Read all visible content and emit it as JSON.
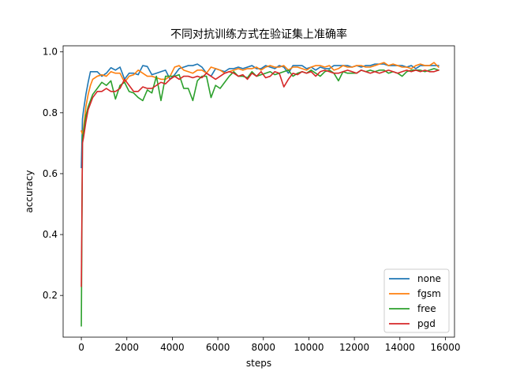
{
  "chart_data": {
    "type": "line",
    "title": "不同对抗训练方式在验证集上准确率",
    "xlabel": "steps",
    "ylabel": "accuracy",
    "xlim": [
      -800,
      16400
    ],
    "ylim": [
      0.063,
      1.02
    ],
    "xticks": [
      0,
      2000,
      4000,
      6000,
      8000,
      10000,
      12000,
      14000,
      16000
    ],
    "yticks": [
      0.2,
      0.4,
      0.6,
      0.8,
      1.0
    ],
    "xtick_labels": [
      "0",
      "2000",
      "4000",
      "6000",
      "8000",
      "10000",
      "12000",
      "14000",
      "16000"
    ],
    "ytick_labels": [
      "0.2",
      "0.4",
      "0.6",
      "0.8",
      "1.0"
    ],
    "grid": false,
    "legend_position": "lower-right",
    "series": [
      {
        "name": "none",
        "color": "#1f77b4",
        "x": [
          0,
          50,
          100,
          200,
          300,
          400,
          500,
          700,
          900,
          1100,
          1300,
          1500,
          1700,
          1900,
          2100,
          2300,
          2500,
          2700,
          2900,
          3100,
          3300,
          3500,
          3700,
          3900,
          4100,
          4300,
          4500,
          4700,
          4900,
          5100,
          5300,
          5500,
          5700,
          5900,
          6100,
          6300,
          6500,
          6700,
          6900,
          7100,
          7300,
          7500,
          7700,
          7900,
          8100,
          8300,
          8500,
          8700,
          8900,
          9100,
          9300,
          9500,
          9700,
          9900,
          10100,
          10300,
          10500,
          10700,
          10900,
          11100,
          11300,
          11500,
          11700,
          11900,
          12100,
          12300,
          12500,
          12700,
          12900,
          13100,
          13300,
          13500,
          13700,
          13900,
          14100,
          14300,
          14500,
          14700,
          14900,
          15100,
          15300,
          15500,
          15700
        ],
        "y": [
          0.62,
          0.78,
          0.81,
          0.86,
          0.9,
          0.935,
          0.935,
          0.935,
          0.92,
          0.93,
          0.948,
          0.94,
          0.95,
          0.91,
          0.93,
          0.93,
          0.925,
          0.955,
          0.952,
          0.925,
          0.93,
          0.935,
          0.94,
          0.91,
          0.925,
          0.945,
          0.95,
          0.955,
          0.955,
          0.96,
          0.95,
          0.93,
          0.92,
          0.945,
          0.94,
          0.935,
          0.945,
          0.945,
          0.95,
          0.945,
          0.95,
          0.955,
          0.945,
          0.945,
          0.955,
          0.95,
          0.945,
          0.955,
          0.95,
          0.93,
          0.955,
          0.955,
          0.955,
          0.945,
          0.95,
          0.94,
          0.95,
          0.945,
          0.945,
          0.955,
          0.955,
          0.955,
          0.955,
          0.95,
          0.955,
          0.95,
          0.955,
          0.955,
          0.96,
          0.96,
          0.96,
          0.955,
          0.955,
          0.955,
          0.955,
          0.95,
          0.955,
          0.945,
          0.955,
          0.955,
          0.955,
          0.955,
          0.955
        ]
      },
      {
        "name": "fgsm",
        "color": "#ff7f0e",
        "x": [
          0,
          50,
          100,
          200,
          300,
          400,
          500,
          700,
          900,
          1100,
          1300,
          1500,
          1700,
          1900,
          2100,
          2300,
          2500,
          2700,
          2900,
          3100,
          3300,
          3500,
          3700,
          3900,
          4100,
          4300,
          4500,
          4700,
          4900,
          5100,
          5300,
          5500,
          5700,
          5900,
          6100,
          6300,
          6500,
          6700,
          6900,
          7100,
          7300,
          7500,
          7700,
          7900,
          8100,
          8300,
          8500,
          8700,
          8900,
          9100,
          9300,
          9500,
          9700,
          9900,
          10100,
          10300,
          10500,
          10700,
          10900,
          11100,
          11300,
          11500,
          11700,
          11900,
          12100,
          12300,
          12500,
          12700,
          12900,
          13100,
          13300,
          13500,
          13700,
          13900,
          14100,
          14300,
          14500,
          14700,
          14900,
          15100,
          15300,
          15500,
          15700
        ],
        "y": [
          0.74,
          0.73,
          0.75,
          0.82,
          0.86,
          0.89,
          0.91,
          0.92,
          0.925,
          0.92,
          0.935,
          0.93,
          0.93,
          0.9,
          0.92,
          0.925,
          0.94,
          0.93,
          0.92,
          0.92,
          0.915,
          0.91,
          0.91,
          0.92,
          0.95,
          0.955,
          0.94,
          0.935,
          0.93,
          0.94,
          0.94,
          0.93,
          0.95,
          0.945,
          0.94,
          0.93,
          0.935,
          0.94,
          0.945,
          0.94,
          0.945,
          0.945,
          0.95,
          0.94,
          0.95,
          0.955,
          0.95,
          0.95,
          0.955,
          0.94,
          0.95,
          0.95,
          0.945,
          0.94,
          0.95,
          0.955,
          0.955,
          0.95,
          0.955,
          0.94,
          0.945,
          0.955,
          0.95,
          0.95,
          0.955,
          0.955,
          0.95,
          0.95,
          0.955,
          0.96,
          0.965,
          0.955,
          0.96,
          0.955,
          0.95,
          0.95,
          0.945,
          0.955,
          0.96,
          0.955,
          0.955,
          0.965,
          0.95
        ]
      },
      {
        "name": "free",
        "color": "#2ca02c",
        "x": [
          0,
          50,
          100,
          200,
          300,
          400,
          500,
          700,
          900,
          1100,
          1300,
          1500,
          1700,
          1900,
          2100,
          2300,
          2500,
          2700,
          2900,
          3100,
          3300,
          3500,
          3700,
          3900,
          4100,
          4300,
          4500,
          4700,
          4900,
          5100,
          5300,
          5500,
          5700,
          5900,
          6100,
          6300,
          6500,
          6700,
          6900,
          7100,
          7300,
          7500,
          7700,
          7900,
          8100,
          8300,
          8500,
          8700,
          8900,
          9100,
          9300,
          9500,
          9700,
          9900,
          10100,
          10300,
          10500,
          10700,
          10900,
          11100,
          11300,
          11500,
          11700,
          11900,
          12100,
          12300,
          12500,
          12700,
          12900,
          13100,
          13300,
          13500,
          13700,
          13900,
          14100,
          14300,
          14500,
          14700,
          14900,
          15100,
          15300,
          15500,
          15700
        ],
        "y": [
          0.1,
          0.72,
          0.74,
          0.79,
          0.82,
          0.84,
          0.86,
          0.88,
          0.9,
          0.89,
          0.905,
          0.845,
          0.89,
          0.9,
          0.87,
          0.865,
          0.85,
          0.84,
          0.875,
          0.865,
          0.92,
          0.84,
          0.92,
          0.92,
          0.92,
          0.925,
          0.88,
          0.88,
          0.84,
          0.905,
          0.92,
          0.92,
          0.85,
          0.89,
          0.88,
          0.9,
          0.92,
          0.935,
          0.92,
          0.92,
          0.915,
          0.935,
          0.92,
          0.925,
          0.93,
          0.935,
          0.925,
          0.93,
          0.935,
          0.94,
          0.92,
          0.93,
          0.935,
          0.93,
          0.94,
          0.93,
          0.92,
          0.935,
          0.94,
          0.93,
          0.905,
          0.935,
          0.93,
          0.93,
          0.93,
          0.94,
          0.935,
          0.94,
          0.935,
          0.94,
          0.94,
          0.93,
          0.935,
          0.93,
          0.92,
          0.935,
          0.94,
          0.94,
          0.94,
          0.935,
          0.94,
          0.945,
          0.94
        ]
      },
      {
        "name": "pgd",
        "color": "#d62728",
        "x": [
          0,
          50,
          100,
          200,
          300,
          400,
          500,
          700,
          900,
          1100,
          1300,
          1500,
          1700,
          1900,
          2100,
          2300,
          2500,
          2700,
          2900,
          3100,
          3300,
          3500,
          3700,
          3900,
          4100,
          4300,
          4500,
          4700,
          4900,
          5100,
          5300,
          5500,
          5700,
          5900,
          6100,
          6300,
          6500,
          6700,
          6900,
          7100,
          7300,
          7500,
          7700,
          7900,
          8100,
          8300,
          8500,
          8700,
          8900,
          9100,
          9300,
          9500,
          9700,
          9900,
          10100,
          10300,
          10500,
          10700,
          10900,
          11100,
          11300,
          11500,
          11700,
          11900,
          12100,
          12300,
          12500,
          12700,
          12900,
          13100,
          13300,
          13500,
          13700,
          13900,
          14100,
          14300,
          14500,
          14700,
          14900,
          15100,
          15300,
          15500,
          15700
        ],
        "y": [
          0.23,
          0.7,
          0.72,
          0.77,
          0.81,
          0.83,
          0.85,
          0.87,
          0.87,
          0.88,
          0.87,
          0.87,
          0.88,
          0.91,
          0.89,
          0.87,
          0.87,
          0.885,
          0.88,
          0.88,
          0.89,
          0.9,
          0.895,
          0.91,
          0.92,
          0.91,
          0.92,
          0.92,
          0.915,
          0.92,
          0.915,
          0.93,
          0.92,
          0.91,
          0.92,
          0.93,
          0.935,
          0.93,
          0.92,
          0.925,
          0.91,
          0.93,
          0.92,
          0.935,
          0.915,
          0.92,
          0.935,
          0.93,
          0.885,
          0.91,
          0.93,
          0.925,
          0.935,
          0.93,
          0.935,
          0.92,
          0.935,
          0.94,
          0.935,
          0.93,
          0.93,
          0.935,
          0.94,
          0.935,
          0.93,
          0.94,
          0.935,
          0.93,
          0.935,
          0.93,
          0.935,
          0.94,
          0.935,
          0.93,
          0.935,
          0.94,
          0.935,
          0.94,
          0.935,
          0.94,
          0.935,
          0.935,
          0.94
        ]
      }
    ]
  }
}
